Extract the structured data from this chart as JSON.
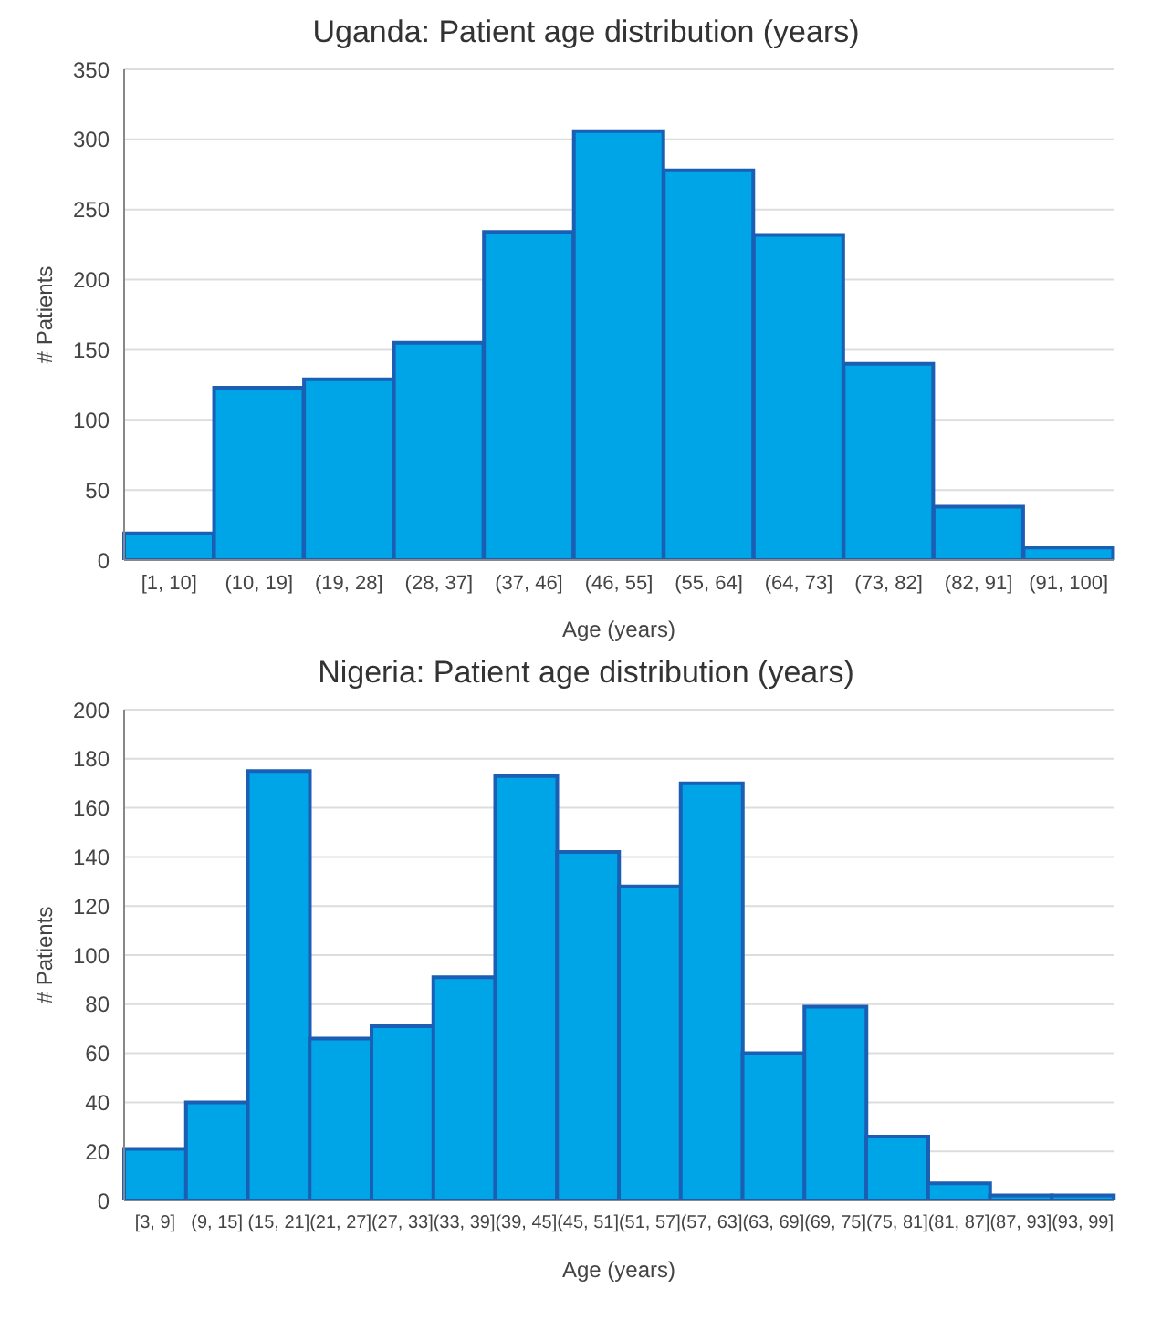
{
  "chart_data": [
    {
      "type": "bar",
      "title": "Uganda: Patient age distribution (years)",
      "xlabel": "Age (years)",
      "ylabel": "# Patients",
      "categories": [
        "[1, 10]",
        "(10, 19]",
        "(19, 28]",
        "(28, 37]",
        "(37, 46]",
        "(46, 55]",
        "(55, 64]",
        "(64, 73]",
        "(73, 82]",
        "(82, 91]",
        "(91, 100]"
      ],
      "values": [
        19,
        123,
        129,
        155,
        234,
        306,
        278,
        232,
        140,
        38,
        9
      ],
      "color": "#00a5e8",
      "ylim": [
        0,
        350
      ],
      "yticks": [
        0,
        50,
        100,
        150,
        200,
        250,
        300,
        350
      ],
      "grid": "y",
      "legend": false
    },
    {
      "type": "bar",
      "title": "Nigeria: Patient age distribution (years)",
      "xlabel": "Age (years)",
      "ylabel": "# Patients",
      "categories": [
        "[3, 9]",
        "(9, 15]",
        "(15, 21]",
        "(21, 27]",
        "(27, 33]",
        "(33, 39]",
        "(39, 45]",
        "(45, 51]",
        "(51, 57]",
        "(57, 63]",
        "(63, 69]",
        "(69, 75]",
        "(75, 81]",
        "(81, 87]",
        "(87, 93]",
        "(93, 99]"
      ],
      "values": [
        21,
        40,
        175,
        66,
        71,
        91,
        173,
        142,
        128,
        170,
        60,
        79,
        26,
        7,
        2,
        2
      ],
      "color": "#00a5e8",
      "ylim": [
        0,
        200
      ],
      "yticks": [
        0,
        20,
        40,
        60,
        80,
        100,
        120,
        140,
        160,
        180,
        200
      ],
      "grid": "y",
      "legend": false
    }
  ]
}
